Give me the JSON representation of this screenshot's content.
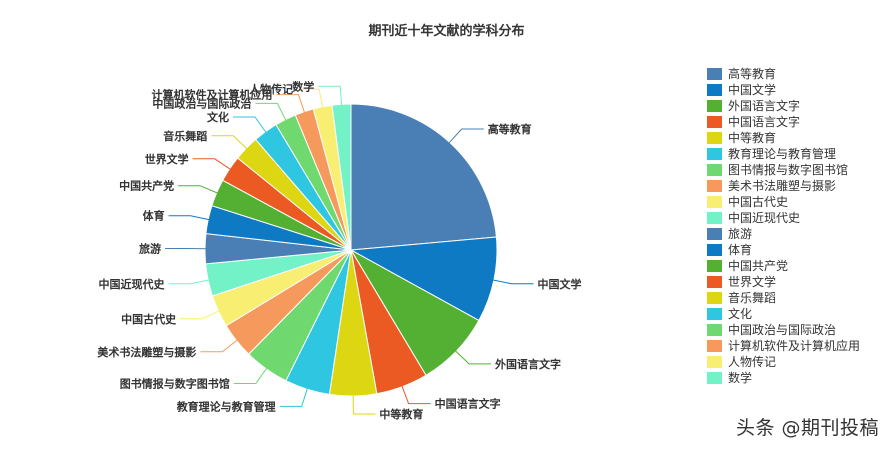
{
  "chart_data": {
    "type": "pie",
    "title": "期刊近十年文献的学科分布",
    "legend_position": "right",
    "slices": [
      {
        "label": "高等教育",
        "value": 25.0,
        "color": "#4a7fb5"
      },
      {
        "label": "中国文学",
        "value": 10.0,
        "color": "#0f7ac4"
      },
      {
        "label": "外国语言文字",
        "value": 8.9,
        "color": "#53b033"
      },
      {
        "label": "中国语言文字",
        "value": 6.1,
        "color": "#ea5a22"
      },
      {
        "label": "中等教育",
        "value": 5.5,
        "color": "#dcd712"
      },
      {
        "label": "教育理论与教育管理",
        "value": 5.3,
        "color": "#2ec6e0"
      },
      {
        "label": "图书情报与数字图书馆",
        "value": 5.3,
        "color": "#6fd970"
      },
      {
        "label": "美术书法雕塑与摄影",
        "value": 4.2,
        "color": "#f59a5c"
      },
      {
        "label": "中国古代史",
        "value": 3.8,
        "color": "#f8ee72"
      },
      {
        "label": "中国近现代史",
        "value": 3.8,
        "color": "#72f2c6"
      },
      {
        "label": "旅游",
        "value": 3.5,
        "color": "#4a7fb5"
      },
      {
        "label": "体育",
        "value": 3.3,
        "color": "#0f7ac4"
      },
      {
        "label": "中国共产党",
        "value": 3.2,
        "color": "#53b033"
      },
      {
        "label": "世界文学",
        "value": 3.1,
        "color": "#ea5a22"
      },
      {
        "label": "音乐舞蹈",
        "value": 3.0,
        "color": "#dcd712"
      },
      {
        "label": "文化",
        "value": 2.9,
        "color": "#2ec6e0"
      },
      {
        "label": "中国政治与国际政治",
        "value": 2.5,
        "color": "#6fd970"
      },
      {
        "label": "计算机软件及计算机应用",
        "value": 2.2,
        "color": "#f59a5c"
      },
      {
        "label": "人物传记",
        "value": 2.2,
        "color": "#f8ee72"
      },
      {
        "label": "数学",
        "value": 2.2,
        "color": "#72f2c6"
      }
    ]
  },
  "watermark": "头条 @期刊投稿"
}
